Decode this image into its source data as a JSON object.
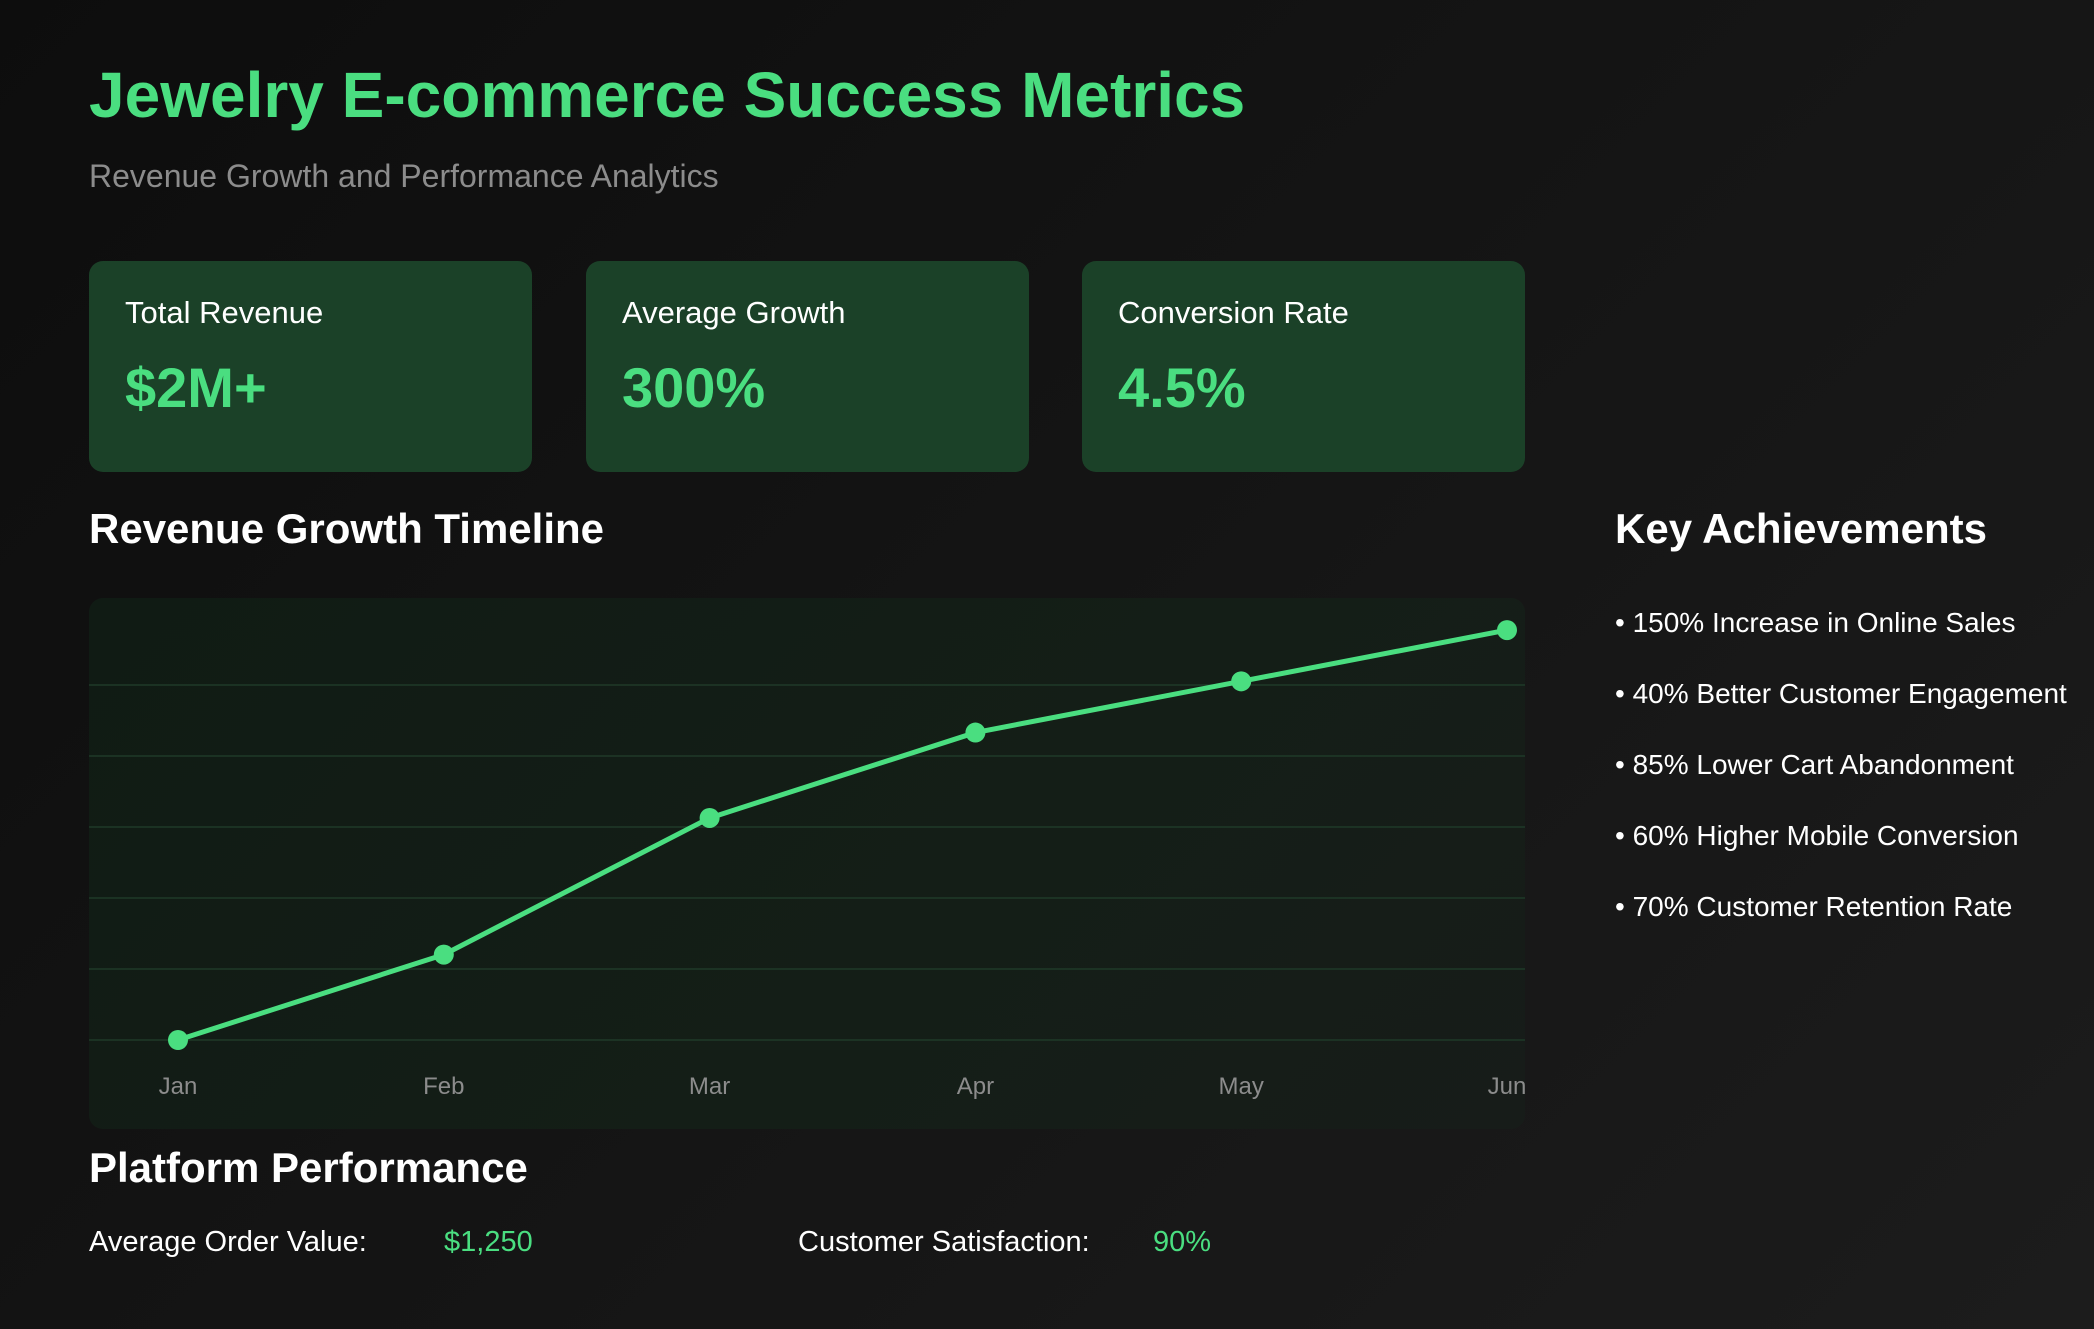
{
  "header": {
    "title": "Jewelry E-commerce Success Metrics",
    "subtitle": "Revenue Growth and Performance Analytics"
  },
  "cards": [
    {
      "label": "Total Revenue",
      "value": "$2M+"
    },
    {
      "label": "Average Growth",
      "value": "300%"
    },
    {
      "label": "Conversion Rate",
      "value": "4.5%"
    }
  ],
  "timeline": {
    "heading": "Revenue Growth Timeline"
  },
  "achievements": {
    "heading": "Key Achievements",
    "items": [
      "• 150% Increase in Online Sales",
      "• 40% Better Customer Engagement",
      "• 85% Lower Cart Abandonment",
      "• 60% Higher Mobile Conversion",
      "• 70% Customer Retention Rate"
    ]
  },
  "performance": {
    "heading": "Platform Performance",
    "metrics": [
      {
        "label": "Average Order Value:",
        "value": "$1,250"
      },
      {
        "label": "Customer Satisfaction:",
        "value": "90%"
      }
    ]
  },
  "colors": {
    "accent": "#4ade80",
    "card_background": "#1b4128",
    "gridline": "#1f3a28",
    "muted_text": "#8c8c8c"
  },
  "chart_data": {
    "type": "line",
    "categories": [
      "Jan",
      "Feb",
      "Mar",
      "Apr",
      "May",
      "Jun"
    ],
    "values": [
      0,
      1,
      2.6,
      3.6,
      4.2,
      4.8
    ],
    "ylim": [
      0,
      5
    ],
    "grid": true,
    "legend": "none"
  }
}
